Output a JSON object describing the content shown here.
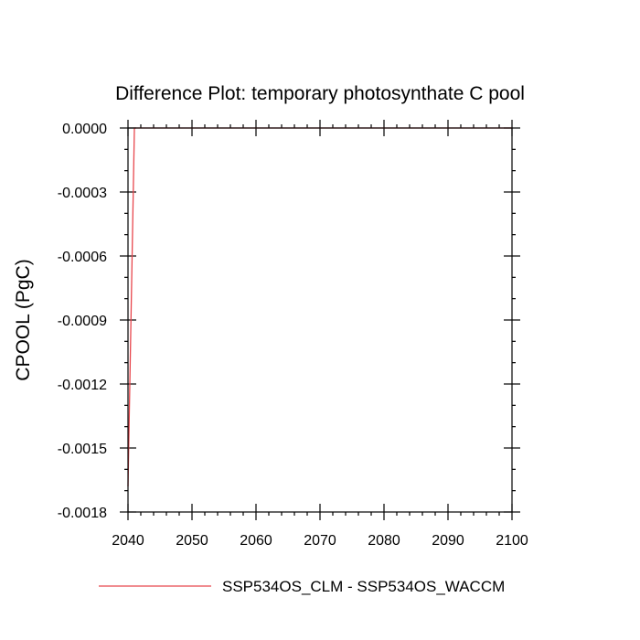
{
  "chart_data": {
    "type": "line",
    "title": "Difference Plot: temporary photosynthate C pool",
    "xlabel": "",
    "ylabel": "CPOOL  (PgC)",
    "xlim": [
      2040,
      2100
    ],
    "ylim": [
      -0.0018,
      0.0
    ],
    "x_ticks": [
      2040,
      2050,
      2060,
      2070,
      2080,
      2090,
      2100
    ],
    "x_tick_labels": [
      "2040",
      "2050",
      "2060",
      "2070",
      "2080",
      "2090",
      "2100"
    ],
    "y_ticks": [
      0.0,
      -0.0003,
      -0.0006,
      -0.0009,
      -0.0012,
      -0.0015,
      -0.0018
    ],
    "y_tick_labels": [
      "0.0000",
      "-0.0003",
      "-0.0006",
      "-0.0009",
      "-0.0012",
      "-0.0015",
      "-0.0018"
    ],
    "x_minor_step": 2,
    "y_minor_step": 0.0001,
    "grid": false,
    "legend_position": "bottom",
    "series": [
      {
        "name": "SSP534OS_CLM - SSP534OS_WACCM",
        "color": "#e8474d",
        "x": [
          2040,
          2041,
          2042,
          2045,
          2050,
          2060,
          2070,
          2080,
          2090,
          2100
        ],
        "y": [
          -0.00168,
          0.0,
          0.0,
          0.0,
          0.0,
          0.0,
          0.0,
          0.0,
          0.0,
          0.0
        ]
      }
    ]
  }
}
